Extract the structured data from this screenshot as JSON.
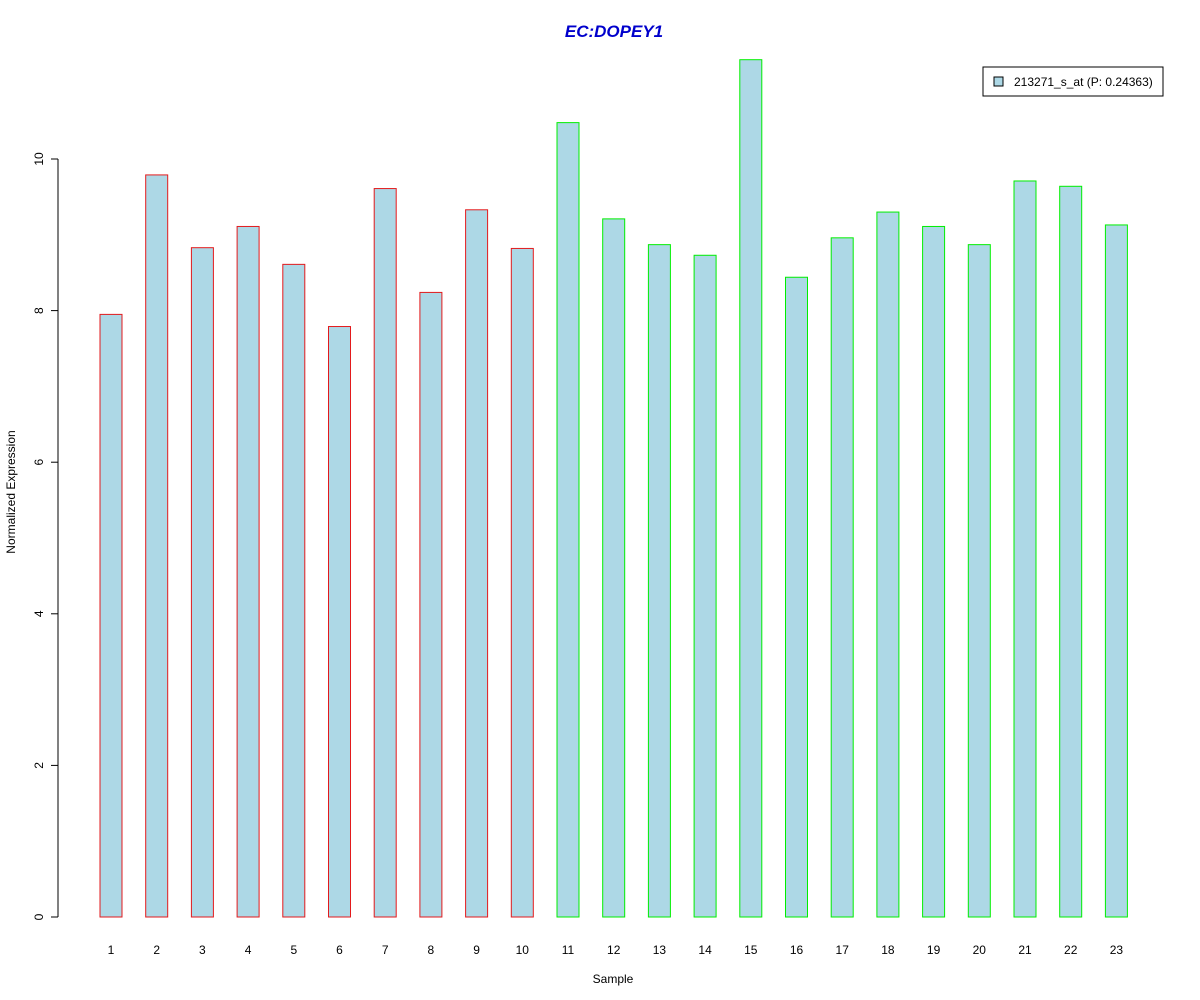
{
  "chart_data": {
    "type": "bar",
    "title": "EC:DOPEY1",
    "xlabel": "Sample",
    "ylabel": "Normalized Expression",
    "ylim": [
      0,
      11.3
    ],
    "yticks": [
      0,
      2,
      4,
      6,
      8,
      10
    ],
    "categories": [
      "1",
      "2",
      "3",
      "4",
      "5",
      "6",
      "7",
      "8",
      "9",
      "10",
      "11",
      "12",
      "13",
      "14",
      "15",
      "16",
      "17",
      "18",
      "19",
      "20",
      "21",
      "22",
      "23"
    ],
    "series": [
      {
        "name": "213271_s_at (P: 0.24363)",
        "values": [
          7.95,
          9.79,
          8.83,
          9.11,
          8.61,
          7.79,
          9.61,
          8.24,
          9.33,
          8.82,
          10.48,
          9.21,
          8.87,
          8.73,
          11.31,
          8.44,
          8.96,
          9.3,
          9.11,
          8.87,
          9.71,
          9.64,
          9.13
        ]
      }
    ],
    "groups": [
      {
        "samples": [
          1,
          2,
          3,
          4,
          5,
          6,
          7,
          8,
          9,
          10
        ],
        "border_color": "#e31a1c"
      },
      {
        "samples": [
          11,
          12,
          13,
          14,
          15,
          16,
          17,
          18,
          19,
          20,
          21,
          22,
          23
        ],
        "border_color": "#00ee00"
      }
    ],
    "bar_fill": "#add8e6",
    "title_color": "#0000cc",
    "grid": false,
    "legend_position": "top-right"
  }
}
